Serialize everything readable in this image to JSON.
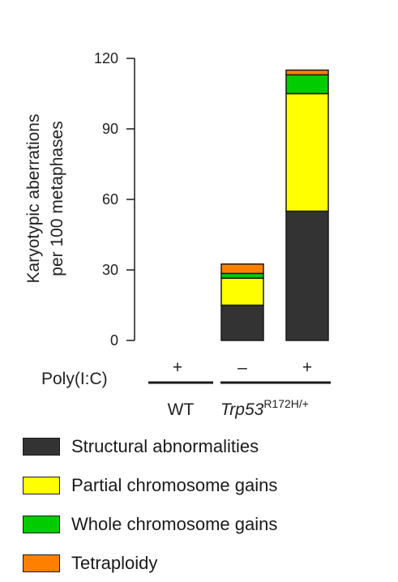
{
  "chart_data": {
    "type": "bar",
    "stacked": true,
    "ylabel_line1": "Karyotypic aberrations",
    "ylabel_line2": "per 100 metaphases",
    "ylim": [
      0,
      120
    ],
    "yticks": [
      0,
      30,
      60,
      90,
      120
    ],
    "categories": [
      "WT +",
      "Trp53 R172H/+ –",
      "Trp53 R172H/+ +"
    ],
    "series": [
      {
        "name": "Structural abnormalities",
        "color": "#333333",
        "values": [
          0,
          15,
          55
        ]
      },
      {
        "name": "Partial chromosome gains",
        "color": "#ffff00",
        "values": [
          0,
          11.5,
          50
        ]
      },
      {
        "name": "Whole chromosome gains",
        "color": "#00cc00",
        "values": [
          0,
          2,
          8
        ]
      },
      {
        "name": "Tetraploidy",
        "color": "#ff8000",
        "values": [
          0,
          4,
          2
        ]
      }
    ],
    "treatment_label": "Poly(I:C)",
    "treatment_signs": [
      "+",
      "–",
      "+"
    ],
    "genotypes": [
      {
        "label": "WT",
        "italic_part": "",
        "superscript": ""
      },
      {
        "label": "",
        "italic_part": "Trp53",
        "superscript": "R172H/+"
      }
    ],
    "legend_position": "bottom"
  }
}
